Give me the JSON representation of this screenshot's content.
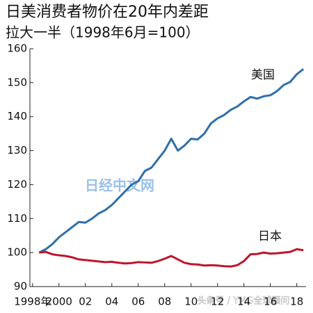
{
  "chart_data": {
    "type": "line",
    "title": "日美消费者物价在20年内差距",
    "subtitle": "拉大一半（1998年6月=100）",
    "watermarks": [
      "日经中文网",
      "头条号 / YMG全球顾问"
    ],
    "x": [
      1998.5,
      1999,
      1999.5,
      2000,
      2000.5,
      2001,
      2001.5,
      2002,
      2002.5,
      2003,
      2003.5,
      2004,
      2004.5,
      2005,
      2005.5,
      2006,
      2006.5,
      2007,
      2007.5,
      2008,
      2008.5,
      2009,
      2009.5,
      2010,
      2010.5,
      2011,
      2011.5,
      2012,
      2012.5,
      2013,
      2013.5,
      2014,
      2014.5,
      2015,
      2015.5,
      2016,
      2016.5,
      2017,
      2017.5,
      2018,
      2018.5
    ],
    "series": [
      {
        "name": "美国",
        "color": "#2f6fa8",
        "values": [
          100,
          101,
          102.5,
          104.5,
          106,
          107.5,
          109,
          108.8,
          110,
          111.5,
          112.5,
          114,
          116,
          118,
          120,
          121,
          124,
          125,
          127.5,
          130,
          133.5,
          130,
          131.5,
          133.5,
          133.3,
          135,
          138,
          139.5,
          140.5,
          142,
          143,
          144.5,
          145.8,
          145.3,
          146,
          146.3,
          147.5,
          149.3,
          150.2,
          152.5,
          154
        ]
      },
      {
        "name": "日本",
        "color": "#c0142b",
        "values": [
          100,
          100.2,
          99.5,
          99.2,
          99,
          98.6,
          98,
          97.8,
          97.6,
          97.4,
          97.2,
          97.3,
          97,
          96.8,
          96.9,
          97.2,
          97.1,
          97,
          97.5,
          98.2,
          99,
          98,
          97,
          96.6,
          96.5,
          96.2,
          96.3,
          96.2,
          96,
          95.9,
          96.3,
          97.5,
          99.5,
          99.6,
          100,
          99.7,
          99.8,
          100,
          100.2,
          101,
          100.7
        ]
      }
    ],
    "xlim": [
      1997.8,
      2018.7
    ],
    "xticks": [
      {
        "value": 1998,
        "label": "1998年"
      },
      2000,
      {
        "value": 2002,
        "label": "02"
      },
      {
        "value": 2004,
        "label": "04"
      },
      {
        "value": 2006,
        "label": "06"
      },
      {
        "value": 2008,
        "label": "08"
      },
      {
        "value": 2010,
        "label": "10"
      },
      {
        "value": 2012,
        "label": "12"
      },
      {
        "value": 2014,
        "label": "14"
      },
      {
        "value": 2016,
        "label": "16"
      },
      {
        "value": 2018,
        "label": "18"
      }
    ],
    "ylim": [
      90,
      160
    ],
    "yticks": [
      90,
      100,
      110,
      120,
      130,
      140,
      150,
      160
    ],
    "grid": false
  }
}
